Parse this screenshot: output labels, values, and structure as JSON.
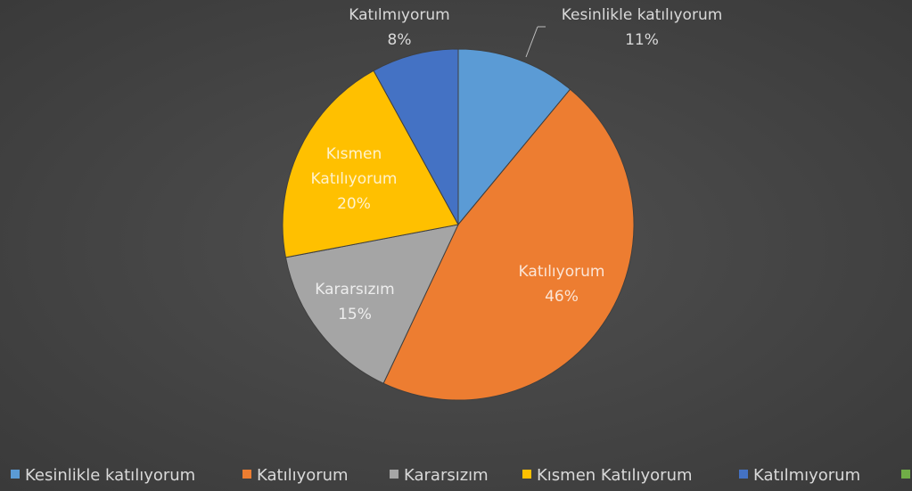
{
  "chart_data": {
    "type": "pie",
    "categories": [
      "Kesinlikle katılıyorum",
      "Katılıyorum",
      "Kararsızım",
      "Kısmen Katılıyorum",
      "Katılmıyorum"
    ],
    "values": [
      11,
      46,
      15,
      20,
      8
    ],
    "value_labels": [
      "11%",
      "46%",
      "15%",
      "20%",
      "8%"
    ],
    "colors": [
      "#5b9bd5",
      "#ed7d31",
      "#a5a5a5",
      "#ffc000",
      "#4472c4"
    ],
    "legend": "bottom"
  }
}
